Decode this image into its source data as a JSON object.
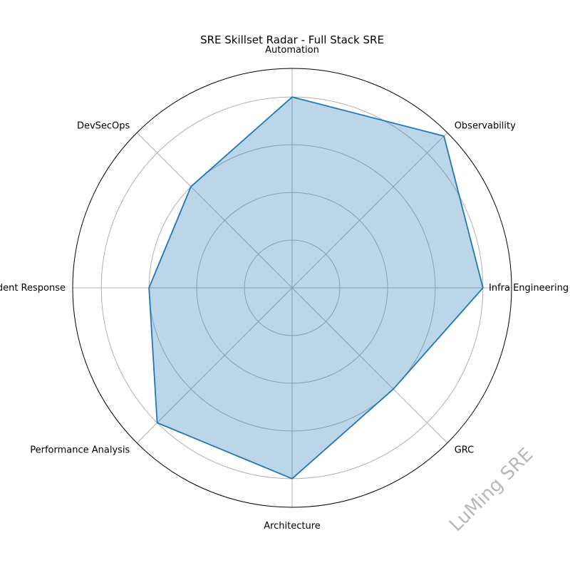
{
  "chart_data": {
    "type": "radar",
    "title": "SRE Skillset Radar - Full Stack SRE",
    "categories": [
      "Infra Engineering",
      "Observability",
      "Automation",
      "DevSecOps",
      "Incident Response",
      "Performance Analysis",
      "Architecture",
      "GRC"
    ],
    "series": [
      {
        "values": [
          4,
          4.5,
          4,
          3,
          3,
          4,
          4,
          3
        ]
      }
    ],
    "rmax": 4.6,
    "rings": [
      1,
      2,
      3,
      4
    ],
    "grid": true,
    "colors": {
      "line": "#1f77b4",
      "fill": "#1f77b4",
      "grid": "#b0b0b0",
      "frame": "#000000"
    }
  },
  "watermark": "LuMing SRE"
}
